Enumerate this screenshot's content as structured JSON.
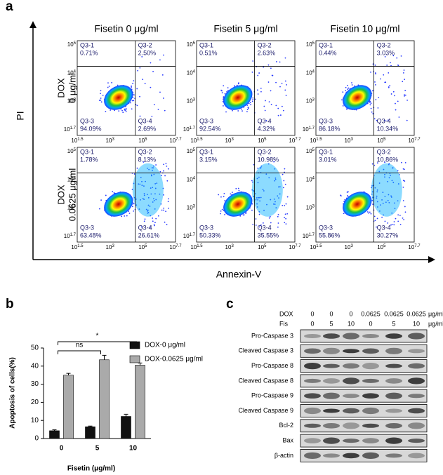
{
  "panel_labels": [
    "a",
    "b",
    "c"
  ],
  "flow": {
    "y_axis_label": "PI",
    "x_axis_label": "Annexin-V",
    "columns": [
      "Fisetin 0 μg/ml",
      "Fisetin 5 μg/ml",
      "Fisetin 10 μg/ml"
    ],
    "rows": [
      [
        "DOX",
        "0 μg/ml"
      ],
      [
        "DOX",
        "0.0625 μg/ml"
      ]
    ],
    "quadrant_names": [
      "Q3-1",
      "Q3-2",
      "Q3-3",
      "Q3-4"
    ],
    "x_ticks": [
      {
        "base": "10",
        "exp": "1.5"
      },
      {
        "base": "10",
        "exp": "3"
      },
      {
        "base": "10",
        "exp": "5"
      },
      {
        "base": "10",
        "exp": "7.7"
      }
    ],
    "y_ticks": [
      {
        "base": "10",
        "exp": "5"
      },
      {
        "base": "10",
        "exp": "4"
      },
      {
        "base": "10",
        "exp": "3"
      },
      {
        "base": "10",
        "exp": "1.7"
      }
    ],
    "plots": [
      [
        [
          "0.71%",
          "2.50%",
          "94.09%",
          "2.69%"
        ],
        [
          "0.51%",
          "2.63%",
          "92.54%",
          "4.32%"
        ],
        [
          "0.44%",
          "3.03%",
          "86.18%",
          "10.34%"
        ]
      ],
      [
        [
          "1.78%",
          "8.13%",
          "63.48%",
          "26.61%"
        ],
        [
          "3.15%",
          "10.98%",
          "50.33%",
          "35.55%"
        ],
        [
          "3.01%",
          "10.86%",
          "55.86%",
          "30.27%"
        ]
      ]
    ]
  },
  "chart_data": {
    "type": "bar",
    "y_axis_label": "Apoptosis  of cells(%)",
    "x_axis_label": "Fisetin (μg/ml)",
    "categories": [
      "0",
      "5",
      "10"
    ],
    "series": [
      {
        "name": "DOX-0 μg/ml",
        "color": "#111111",
        "values": [
          4.3,
          6.5,
          12.2
        ],
        "errors": [
          0.5,
          0.4,
          1.2
        ]
      },
      {
        "name": "DOX-0.0625 μg/ml",
        "color": "#aaaaaa",
        "values": [
          35,
          43.5,
          40.5
        ],
        "errors": [
          1,
          2.5,
          1.2
        ]
      }
    ],
    "ylim": [
      0,
      50
    ],
    "yticks": [
      0,
      10,
      20,
      30,
      40,
      50
    ],
    "annotations": [
      "ns",
      "*"
    ]
  },
  "blot": {
    "dox_label": "DOX",
    "fis_label": "Fis",
    "dox": [
      "0",
      "0",
      "0",
      "0.0625",
      "0.0625",
      "0.0625"
    ],
    "fis": [
      "0",
      "5",
      "10",
      "0",
      "5",
      "10"
    ],
    "unit": "μg/ml",
    "proteins": [
      "Pro-Caspase 3",
      "Cleaved Caspase 3",
      "Pro-Caspase 8",
      "Cleaved Caspase 8",
      "Pro-Caspase 9",
      "Cleaved Caspase 9",
      "Bcl-2",
      "Bax",
      "β-actin"
    ]
  }
}
